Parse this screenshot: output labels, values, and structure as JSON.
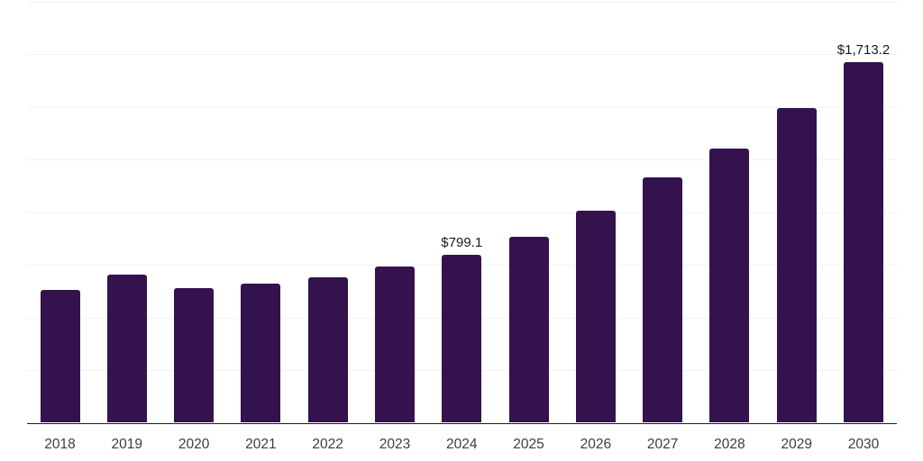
{
  "chart_data": {
    "type": "bar",
    "title": "",
    "xlabel": "",
    "ylabel": "",
    "categories": [
      "2018",
      "2019",
      "2020",
      "2021",
      "2022",
      "2023",
      "2024",
      "2025",
      "2026",
      "2027",
      "2028",
      "2029",
      "2030"
    ],
    "values": [
      630,
      702,
      640,
      660,
      690,
      742,
      799.1,
      882,
      1005,
      1166,
      1301,
      1492,
      1713.2
    ],
    "data_labels": [
      "",
      "",
      "",
      "",
      "",
      "",
      "$799.1",
      "",
      "",
      "",
      "",
      "",
      "$1,713.2"
    ],
    "ylim": [
      0,
      2000
    ],
    "gridline_step": 250,
    "grid": "horizontal",
    "y_tick_labels_visible": false,
    "legend": "none",
    "colors": {
      "bar": "#34124E",
      "axis_line": "#1f1f1f",
      "gridline": "#f2f2f2",
      "data_label": "#1a1a1a",
      "tick_label": "#3d3d3d",
      "background": "#ffffff"
    }
  }
}
